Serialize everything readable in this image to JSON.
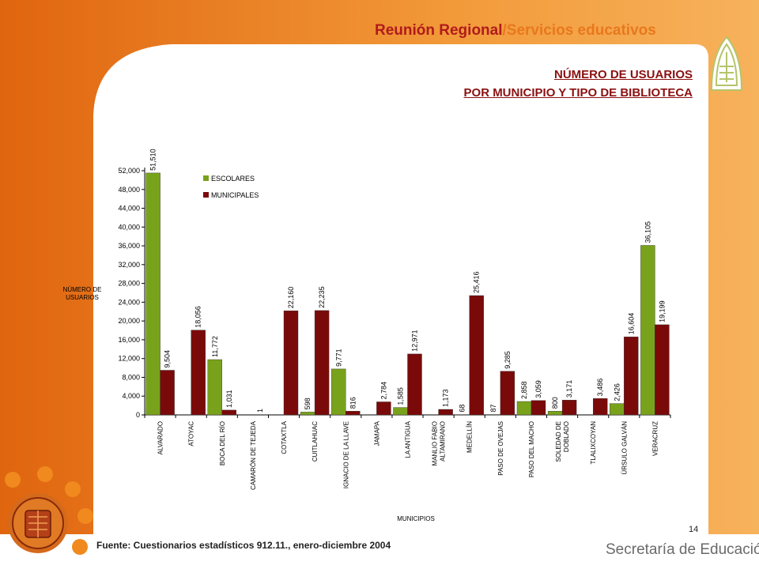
{
  "header": {
    "title_part1": "Reunión Regional",
    "title_part2": "/Servicios educativos",
    "subtitle_line1": "NÚMERO DE USUARIOS",
    "subtitle_line2": "POR MUNICIPIO Y TIPO DE BIBLIOTECA"
  },
  "colors": {
    "orange": "#f07d1e",
    "dark_red": "#7a0a0a",
    "green": "#79a21c",
    "title_red": "#b01b1b",
    "title_orange": "#e8781e"
  },
  "footer": {
    "page_number": "14",
    "source": "Fuente: Cuestionarios estadísticos 912.11., enero-diciembre 2004",
    "secretaria": "Secretaría de Educación"
  },
  "icons": [
    "logo-icon",
    "state-seal-icon",
    "decorative-dot-icon"
  ],
  "chart_data": {
    "type": "bar",
    "xlabel": "MUNICIPIOS",
    "ylabel_lines": [
      "NÚMERO DE",
      "USUARIOS"
    ],
    "ylim": [
      0,
      52000
    ],
    "yticks": [
      0,
      4000,
      8000,
      12000,
      16000,
      20000,
      24000,
      28000,
      32000,
      36000,
      40000,
      44000,
      48000,
      52000
    ],
    "ytick_labels": [
      "0",
      "4,000",
      "8,000",
      "12,000",
      "16,000",
      "20,000",
      "24,000",
      "28,000",
      "32,000",
      "36,000",
      "40,000",
      "44,000",
      "48,000",
      "52,000"
    ],
    "grid": false,
    "legend_position": "top-left",
    "categories": [
      [
        "ALVARADO"
      ],
      [
        "ATOYAC"
      ],
      [
        "BOCA DEL RÍO"
      ],
      [
        "CAMARÓN DE TEJEDA"
      ],
      [
        "COTAXTLA"
      ],
      [
        "CUITLAHUAC"
      ],
      [
        "IGNACIO DE LA LLAVE"
      ],
      [
        "JAMAPA"
      ],
      [
        "LA ANTIGUA"
      ],
      [
        "MANLIO FABIO",
        "ALTAMIRANO"
      ],
      [
        "MEDELLÍN"
      ],
      [
        "PASO DE OVEJAS"
      ],
      [
        "PASO DEL MACHO"
      ],
      [
        "SOLEDAD DE",
        "DOBLADO"
      ],
      [
        "TLALIXCOYAN"
      ],
      [
        "ÚRSULO GALVÁN"
      ],
      [
        "VERACRUZ"
      ]
    ],
    "series": [
      {
        "name": "ESCOLARES",
        "color": "#79a21c",
        "values": [
          51510,
          null,
          11772,
          null,
          null,
          598,
          9771,
          null,
          1585,
          null,
          68,
          87,
          2858,
          800,
          null,
          2426,
          36105
        ],
        "labels": [
          "51,510",
          "",
          "11,772",
          "",
          "",
          "598",
          "9,771",
          "",
          "1,585",
          "",
          "68",
          "87",
          "2,858",
          "800",
          "",
          "2,426",
          "36,105"
        ]
      },
      {
        "name": "MUNICIPALES",
        "color": "#7a0a0a",
        "values": [
          9504,
          18056,
          1031,
          1,
          22160,
          22235,
          816,
          2784,
          12971,
          1173,
          25416,
          9285,
          3059,
          3171,
          3486,
          16604,
          19199
        ],
        "labels": [
          "9,504",
          "18,056",
          "1,031",
          "1",
          "22,160",
          "22,235",
          "816",
          "2,784",
          "12,971",
          "1,173",
          "25,416",
          "9,285",
          "3,059",
          "3,171",
          "3,486",
          "16,604",
          "19,199"
        ]
      }
    ]
  }
}
